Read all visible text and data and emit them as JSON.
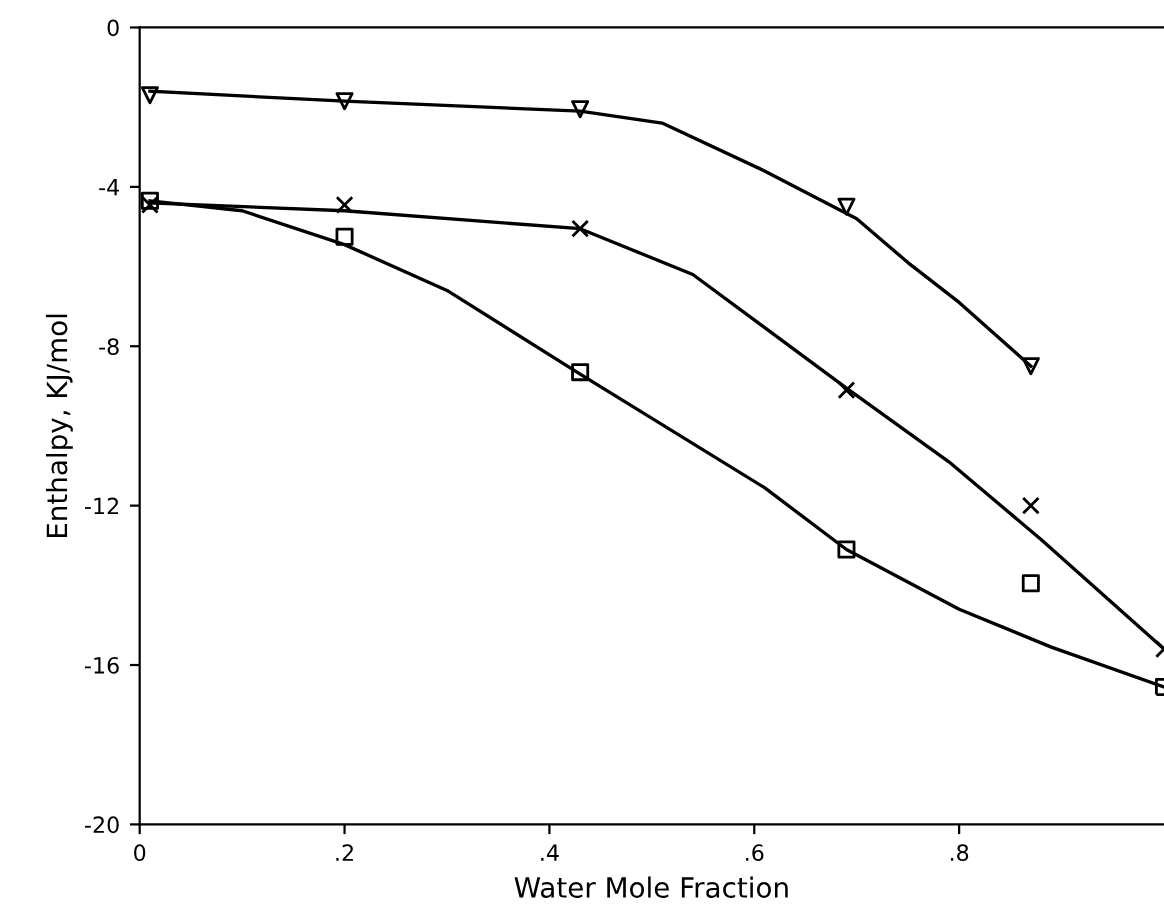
{
  "chart_data": {
    "type": "scatter",
    "xlabel": "Water Mole Fraction",
    "ylabel": "Enthalpy, KJ/mol",
    "xlim": [
      0,
      1
    ],
    "ylim": [
      -20,
      0
    ],
    "xticks": [
      {
        "value": 0,
        "label": "0"
      },
      {
        "value": 0.2,
        "label": ".2"
      },
      {
        "value": 0.4,
        "label": ".4"
      },
      {
        "value": 0.6,
        "label": ".6"
      },
      {
        "value": 0.8,
        "label": ".8"
      }
    ],
    "yticks": [
      -20,
      -16,
      -12,
      -8,
      -4,
      0
    ],
    "grid": false,
    "legend": false,
    "series": [
      {
        "marker": "triangle",
        "color": "#000000",
        "x": [
          0.01,
          0.2,
          0.43,
          0.69,
          0.87
        ],
        "values": [
          -1.7,
          -1.85,
          -2.05,
          -4.5,
          -8.5
        ]
      },
      {
        "marker": "cross",
        "color": "#000000",
        "x": [
          0.01,
          0.2,
          0.43,
          0.69,
          0.87,
          1.0
        ],
        "values": [
          -4.45,
          -4.45,
          -5.05,
          -9.1,
          -12.0,
          -15.6
        ]
      },
      {
        "marker": "square",
        "color": "#000000",
        "x": [
          0.01,
          0.2,
          0.43,
          0.69,
          0.87,
          1.0
        ],
        "values": [
          -4.35,
          -5.25,
          -8.65,
          -13.1,
          -13.95,
          -16.55
        ]
      },
      {
        "type": "line",
        "marker": "none",
        "line_style": "solid",
        "color": "#000000",
        "x": [
          0.01,
          0.2,
          0.43,
          0.51,
          0.61,
          0.7,
          0.75,
          0.8,
          0.87
        ],
        "values": [
          -1.6,
          -1.85,
          -2.1,
          -2.4,
          -3.6,
          -4.8,
          -5.9,
          -6.9,
          -8.5
        ]
      },
      {
        "type": "line",
        "marker": "none",
        "line_style": "solid",
        "color": "#000000",
        "x": [
          0.01,
          0.2,
          0.43,
          0.54,
          0.69,
          0.79,
          0.88,
          1.0
        ],
        "values": [
          -4.4,
          -4.6,
          -5.05,
          -6.2,
          -9.05,
          -10.9,
          -12.85,
          -15.6
        ]
      },
      {
        "type": "line",
        "marker": "none",
        "line_style": "solid",
        "color": "#000000",
        "x": [
          0.01,
          0.1,
          0.2,
          0.3,
          0.43,
          0.61,
          0.69,
          0.8,
          0.89,
          1.0
        ],
        "values": [
          -4.35,
          -4.6,
          -5.45,
          -6.6,
          -8.7,
          -11.55,
          -13.1,
          -14.6,
          -15.55,
          -16.55
        ]
      }
    ]
  }
}
